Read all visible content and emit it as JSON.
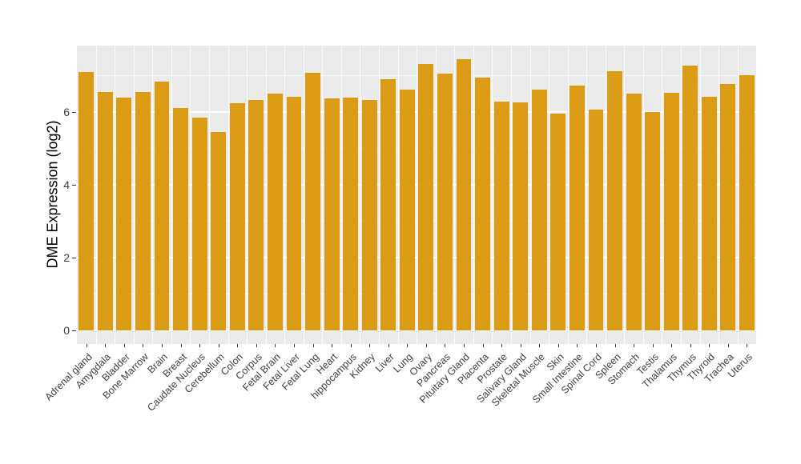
{
  "chart_data": {
    "type": "bar",
    "title": "",
    "xlabel": "",
    "ylabel": "DME Expression (log2)",
    "ylim": [
      0,
      7.83
    ],
    "yticks": [
      0,
      2,
      4,
      6
    ],
    "yticks_minor": [
      1,
      3,
      5,
      7
    ],
    "grid": true,
    "legend_position": "none",
    "categories": [
      "Adrenal gland",
      "Amygdala",
      "Bladder",
      "Bone Marrow",
      "Brain",
      "Breast",
      "Caudate Nucleus",
      "Cerebellum",
      "Colon",
      "Corpus",
      "Fetal Brain",
      "Fetal Liver",
      "Fetal Lung",
      "Heart",
      "hippocampus",
      "Kidney",
      "Liver",
      "Lung",
      "Ovary",
      "Pancreas",
      "Pituitary Gland",
      "Placenta",
      "Prostate",
      "Salivary Gland",
      "Skeletal Muscle",
      "Skin",
      "Small Intestine",
      "Spinal Cord",
      "Spleen",
      "Stomach",
      "Testis",
      "Thalamus",
      "Thymus",
      "Thyroid",
      "Trachea",
      "Uterus"
    ],
    "values": [
      7.1,
      6.55,
      6.4,
      6.55,
      6.85,
      6.12,
      5.85,
      5.45,
      6.25,
      6.33,
      6.5,
      6.42,
      7.08,
      6.38,
      6.4,
      6.33,
      6.9,
      6.63,
      7.33,
      7.05,
      7.45,
      6.95,
      6.3,
      6.27,
      6.62,
      5.95,
      6.72,
      6.08,
      7.12,
      6.52,
      6.0,
      6.53,
      7.28,
      6.43,
      6.77,
      7.02
    ],
    "colors": {
      "bar_fill": "#DC9B15",
      "panel_background": "#EBEBEB",
      "gridline": "#FFFFFF",
      "tick_mark": "#333333",
      "axis_text": "#404040",
      "axis_title": "#000000",
      "figure_background": "#FFFFFF"
    }
  }
}
